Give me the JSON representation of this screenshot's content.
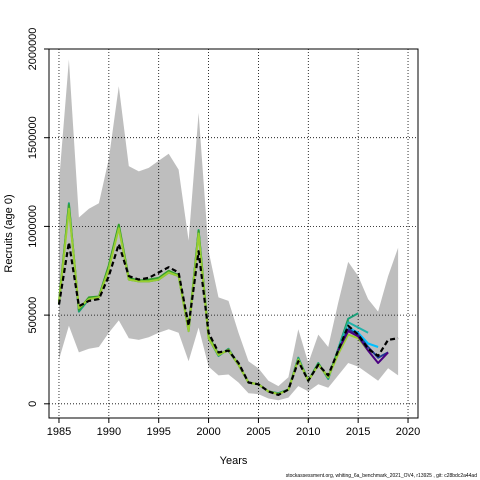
{
  "chart_data": {
    "type": "line",
    "xlabel": "Years",
    "ylabel": "Recruits (age 0)",
    "xlim": [
      1984,
      2021
    ],
    "ylim": [
      -80000,
      2000000
    ],
    "x_ticks": [
      1985,
      1990,
      1995,
      2000,
      2005,
      2010,
      2015,
      2020
    ],
    "y_ticks": [
      0,
      500000,
      1000000,
      1500000,
      2000000
    ],
    "grid": true,
    "grid_style": "dotted",
    "confidence_band": {
      "color": "#bebebe",
      "x": [
        1985,
        1986,
        1987,
        1988,
        1989,
        1990,
        1991,
        1992,
        1993,
        1994,
        1995,
        1996,
        1997,
        1998,
        1999,
        2000,
        2001,
        2002,
        2003,
        2004,
        2005,
        2006,
        2007,
        2008,
        2009,
        2010,
        2011,
        2012,
        2013,
        2014,
        2015,
        2016,
        2017,
        2018,
        2019
      ],
      "upper": [
        1250000,
        1940000,
        1050000,
        1100000,
        1130000,
        1380000,
        1790000,
        1340000,
        1310000,
        1330000,
        1370000,
        1410000,
        1320000,
        920000,
        1640000,
        860000,
        600000,
        580000,
        400000,
        240000,
        200000,
        130000,
        100000,
        150000,
        420000,
        230000,
        390000,
        320000,
        570000,
        800000,
        720000,
        590000,
        520000,
        720000,
        880000
      ],
      "lower": [
        250000,
        440000,
        290000,
        310000,
        320000,
        400000,
        470000,
        370000,
        360000,
        375000,
        400000,
        420000,
        400000,
        240000,
        430000,
        210000,
        160000,
        165000,
        120000,
        60000,
        55000,
        30000,
        20000,
        35000,
        100000,
        70000,
        110000,
        90000,
        160000,
        230000,
        210000,
        170000,
        130000,
        200000,
        160000
      ]
    },
    "series": [
      {
        "color": "#000000",
        "dashed": true,
        "x": [
          1985,
          1986,
          1987,
          1988,
          1989,
          1990,
          1991,
          1992,
          1993,
          1994,
          1995,
          1996,
          1997,
          1998,
          1999,
          2000,
          2001,
          2002,
          2003,
          2004,
          2005,
          2006,
          2007,
          2008,
          2009,
          2010,
          2011,
          2012,
          2013,
          2014,
          2015,
          2016,
          2017,
          2018,
          2019
        ],
        "values": [
          560000,
          910000,
          550000,
          580000,
          590000,
          720000,
          900000,
          720000,
          700000,
          710000,
          740000,
          770000,
          740000,
          440000,
          860000,
          400000,
          290000,
          300000,
          230000,
          120000,
          110000,
          70000,
          50000,
          80000,
          240000,
          130000,
          220000,
          160000,
          300000,
          440000,
          390000,
          310000,
          270000,
          360000,
          370000
        ]
      },
      {
        "color": "#1b9e77",
        "x": [
          1985,
          1986,
          1987,
          1988,
          1989,
          1990,
          1991,
          1992,
          1993,
          1994,
          1995,
          1996,
          1997,
          1998,
          1999,
          2000,
          2001,
          2002,
          2003,
          2004,
          2005,
          2006,
          2007,
          2008,
          2009,
          2010,
          2011,
          2012,
          2013,
          2014,
          2015
        ],
        "values": [
          560000,
          1130000,
          520000,
          590000,
          600000,
          770000,
          1000000,
          700000,
          690000,
          690000,
          700000,
          740000,
          720000,
          410000,
          980000,
          370000,
          270000,
          310000,
          220000,
          120000,
          110000,
          70000,
          60000,
          80000,
          260000,
          130000,
          230000,
          140000,
          310000,
          480000,
          510000
        ]
      },
      {
        "color": "#33a02c",
        "x": [
          1985,
          1986,
          1987,
          1988,
          1989,
          1990,
          1991,
          1992,
          1993,
          1994,
          1995,
          1996,
          1997,
          1998,
          1999,
          2000,
          2001,
          2002,
          2003,
          2004,
          2005,
          2006,
          2007,
          2008,
          2009,
          2010,
          2011,
          2012,
          2013,
          2014
        ],
        "values": [
          580000,
          1120000,
          530000,
          600000,
          605000,
          780000,
          1010000,
          710000,
          695000,
          700000,
          710000,
          750000,
          725000,
          420000,
          975000,
          380000,
          280000,
          300000,
          220000,
          120000,
          110000,
          70000,
          55000,
          80000,
          250000,
          130000,
          225000,
          150000,
          300000,
          470000
        ]
      },
      {
        "color": "#9acd32",
        "x": [
          1985,
          1986,
          1987,
          1988,
          1989,
          1990,
          1991,
          1992,
          1993,
          1994,
          1995,
          1996,
          1997,
          1998,
          1999,
          2000,
          2001,
          2002,
          2003,
          2004,
          2005,
          2006,
          2007,
          2008,
          2009,
          2010,
          2011,
          2012,
          2013,
          2014,
          2015,
          2016
        ],
        "values": [
          570000,
          1100000,
          540000,
          590000,
          600000,
          760000,
          990000,
          700000,
          690000,
          690000,
          700000,
          740000,
          720000,
          410000,
          960000,
          370000,
          275000,
          305000,
          220000,
          120000,
          110000,
          70000,
          55000,
          80000,
          250000,
          130000,
          220000,
          150000,
          280000,
          390000,
          370000,
          300000
        ]
      },
      {
        "color": "#20b2aa",
        "x": [
          2013,
          2014,
          2015,
          2016
        ],
        "values": [
          310000,
          460000,
          430000,
          400000
        ]
      },
      {
        "color": "#00bfff",
        "x": [
          2014,
          2015,
          2016,
          2017
        ],
        "values": [
          430000,
          400000,
          340000,
          320000
        ]
      },
      {
        "color": "#1f3a93",
        "x": [
          2013,
          2014,
          2015,
          2016,
          2017,
          2018
        ],
        "values": [
          300000,
          420000,
          390000,
          320000,
          260000,
          290000
        ]
      },
      {
        "color": "#4b0082",
        "x": [
          2013,
          2014,
          2015,
          2016,
          2017,
          2018
        ],
        "values": [
          300000,
          410000,
          380000,
          300000,
          230000,
          290000
        ]
      }
    ]
  },
  "footer": "stockassessment.org,  whiting_6a_benchmark_2021_OV4,  r13925 ,  git: c28bdc2a44ad"
}
